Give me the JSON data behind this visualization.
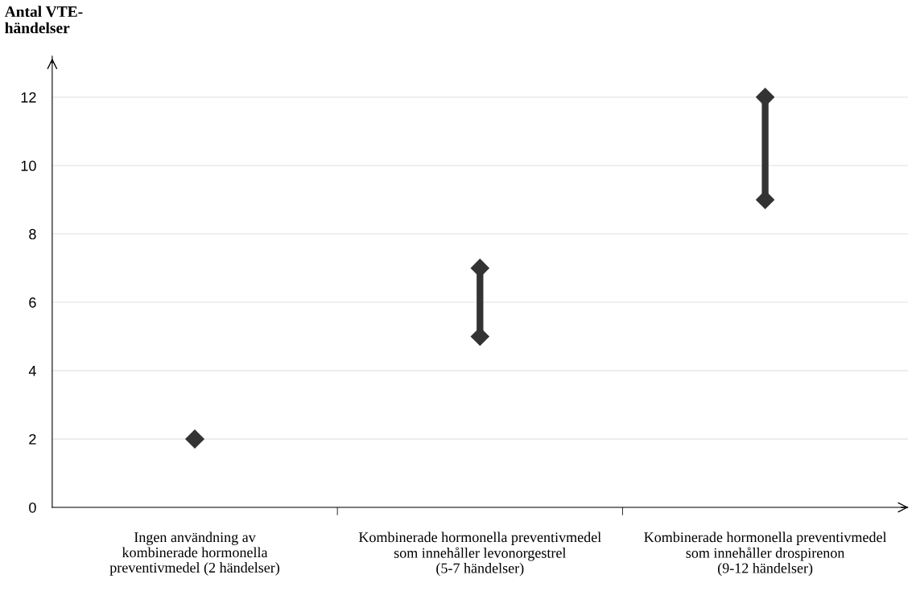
{
  "chart_data": {
    "type": "line",
    "ylabel": "Antal VTE-\nhändelser",
    "categories": [
      "Ingen användning av\nkombinerade hormonella\npreventivmedel (2 händelser)",
      "Kombinerade hormonella preventivmedel\nsom innehåller levonorgestrel\n(5-7 händelser)",
      "Kombinerade hormonella preventivmedel\nsom innehåller drospirenon\n(9-12 händelser)"
    ],
    "series": [
      {
        "type": "scatter",
        "color": "#333333",
        "marker": "diamond",
        "x": [
          "Ingen användning av\nkombinerade hormonella\npreventivmedel (2 händelser)"
        ],
        "values": [
          2
        ]
      },
      {
        "color": "#333333",
        "marker": "diamond",
        "x": [
          "Kombinerade hormonella preventivmedel\nsom innehåller levonorgestrel\n(5-7 händelser)",
          "Kombinerade hormonella preventivmedel\nsom innehåller levonorgestrel\n(5-7 händelser)"
        ],
        "values": [
          5,
          7
        ]
      },
      {
        "color": "#333333",
        "marker": "diamond",
        "x": [
          "Kombinerade hormonella preventivmedel\nsom innehåller drospirenon\n(9-12 händelser)",
          "Kombinerade hormonella preventivmedel\nsom innehåller drospirenon\n(9-12 händelser)"
        ],
        "values": [
          9,
          12
        ]
      }
    ],
    "ylim": [
      0,
      13.2
    ],
    "yticks": [
      0,
      2,
      4,
      6,
      8,
      10,
      12
    ],
    "grid": "y"
  }
}
